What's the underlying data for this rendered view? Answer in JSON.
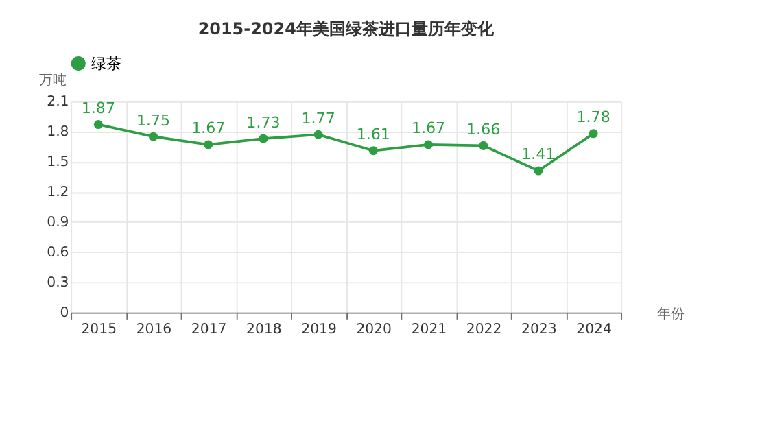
{
  "chart_data": {
    "type": "line",
    "title": "2015-2024年美国绿茶进口量历年变化",
    "xlabel": "年份",
    "ylabel": "万吨",
    "categories": [
      "2015",
      "2016",
      "2017",
      "2018",
      "2019",
      "2020",
      "2021",
      "2022",
      "2023",
      "2024"
    ],
    "series": [
      {
        "name": "绿茶",
        "color": "#2e9e44",
        "values": [
          1.87,
          1.75,
          1.67,
          1.73,
          1.77,
          1.61,
          1.67,
          1.66,
          1.41,
          1.78
        ]
      }
    ],
    "ylim": [
      0,
      2.1
    ],
    "yticks": [
      0,
      0.3,
      0.6,
      0.9,
      1.2,
      1.5,
      1.8,
      2.1
    ],
    "grid": true,
    "legend": "top",
    "marker": "circle",
    "line_style": "solid",
    "data_labels": true
  }
}
